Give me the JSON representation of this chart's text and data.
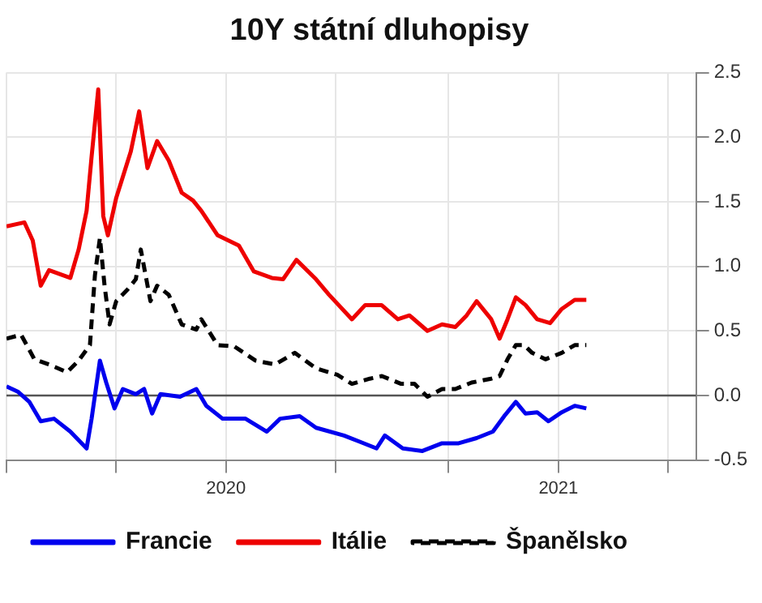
{
  "chart_data": {
    "type": "line",
    "title": "10Y státní dluhopisy",
    "xlim": [
      2019.34,
      2021.414
    ],
    "xticks": [
      {
        "value": 2019.34,
        "label": null
      },
      {
        "value": 2019.67,
        "label": null
      },
      2020,
      {
        "value": 2020.33,
        "label": null
      },
      {
        "value": 2020.67,
        "label": null
      },
      2021,
      {
        "value": 2021.33,
        "label": null
      }
    ],
    "ylim": [
      -0.5,
      2.5
    ],
    "yticks": [
      {
        "value": -0.5,
        "label": "-0.5"
      },
      {
        "value": 0,
        "label": "0.0"
      },
      {
        "value": 0.5,
        "label": "0.5"
      },
      {
        "value": 1,
        "label": "1.0"
      },
      {
        "value": 1.5,
        "label": "1.5"
      },
      {
        "value": 2,
        "label": "2.0"
      },
      {
        "value": 2.5,
        "label": "2.5"
      }
    ],
    "grid": true,
    "legend": "bottom",
    "marker": "none",
    "ref_lines": [
      {
        "axis": "y",
        "value": 0,
        "color": "#555555"
      }
    ],
    "series": [
      {
        "name": "Francie",
        "color": "#0000ee",
        "line_style": "solid",
        "x": [
          2019.34,
          2019.374,
          2019.409,
          2019.443,
          2019.483,
          2019.532,
          2019.581,
          2019.596,
          2019.621,
          2019.64,
          2019.665,
          2019.69,
          2019.729,
          2019.754,
          2019.778,
          2019.803,
          2019.862,
          2019.911,
          2019.941,
          2019.99,
          2020.059,
          2020.123,
          2020.163,
          2020.222,
          2020.271,
          2020.355,
          2020.404,
          2020.453,
          2020.478,
          2020.532,
          2020.591,
          2020.65,
          2020.7,
          2020.754,
          2020.803,
          2020.837,
          2020.872,
          2020.901,
          2020.936,
          2020.97,
          2021.01,
          2021.049,
          2021.084
        ],
        "values": [
          0.07,
          0.03,
          -0.05,
          -0.2,
          -0.18,
          -0.28,
          -0.41,
          -0.18,
          0.27,
          0.1,
          -0.1,
          0.05,
          0.01,
          0.05,
          -0.14,
          0.01,
          -0.01,
          0.05,
          -0.08,
          -0.18,
          -0.18,
          -0.28,
          -0.18,
          -0.16,
          -0.25,
          -0.31,
          -0.36,
          -0.41,
          -0.31,
          -0.41,
          -0.43,
          -0.37,
          -0.37,
          -0.33,
          -0.28,
          -0.16,
          -0.05,
          -0.14,
          -0.13,
          -0.2,
          -0.13,
          -0.08,
          -0.1
        ]
      },
      {
        "name": "Itálie",
        "color": "#ee0000",
        "line_style": "solid",
        "x": [
          2019.34,
          2019.394,
          2019.419,
          2019.443,
          2019.468,
          2019.532,
          2019.557,
          2019.581,
          2019.596,
          2019.616,
          2019.631,
          2019.645,
          2019.67,
          2019.714,
          2019.739,
          2019.764,
          2019.793,
          2019.828,
          2019.867,
          2019.901,
          2019.926,
          2019.975,
          2020.039,
          2020.084,
          2020.138,
          2020.172,
          2020.212,
          2020.271,
          2020.31,
          2020.379,
          2020.419,
          2020.468,
          2020.517,
          2020.552,
          2020.606,
          2020.65,
          2020.69,
          2020.724,
          2020.754,
          2020.798,
          2020.823,
          2020.847,
          2020.872,
          2020.901,
          2020.936,
          2020.975,
          2021.01,
          2021.049,
          2021.084
        ],
        "values": [
          1.31,
          1.34,
          1.2,
          0.85,
          0.97,
          0.91,
          1.13,
          1.43,
          1.85,
          2.37,
          1.39,
          1.24,
          1.53,
          1.89,
          2.2,
          1.76,
          1.97,
          1.82,
          1.57,
          1.51,
          1.43,
          1.24,
          1.16,
          0.96,
          0.91,
          0.9,
          1.05,
          0.9,
          0.78,
          0.59,
          0.7,
          0.7,
          0.59,
          0.62,
          0.5,
          0.55,
          0.53,
          0.62,
          0.73,
          0.59,
          0.44,
          0.59,
          0.76,
          0.7,
          0.59,
          0.56,
          0.67,
          0.74,
          0.74
        ]
      },
      {
        "name": "Španělsko",
        "color": "#000000",
        "line_style": "dashed",
        "x": [
          2019.34,
          2019.384,
          2019.424,
          2019.468,
          2019.522,
          2019.557,
          2019.591,
          2019.606,
          2019.621,
          2019.635,
          2019.65,
          2019.67,
          2019.704,
          2019.729,
          2019.744,
          2019.773,
          2019.793,
          2019.828,
          2019.867,
          2019.911,
          2019.926,
          2019.975,
          2020.025,
          2020.089,
          2020.148,
          2020.207,
          2020.271,
          2020.335,
          2020.379,
          2020.433,
          2020.469,
          2020.527,
          2020.567,
          2020.606,
          2020.65,
          2020.69,
          2020.739,
          2020.798,
          2020.823,
          2020.847,
          2020.872,
          2020.897,
          2020.921,
          2020.961,
          2021.01,
          2021.049,
          2021.084
        ],
        "values": [
          0.44,
          0.47,
          0.28,
          0.24,
          0.18,
          0.27,
          0.39,
          0.93,
          1.22,
          0.85,
          0.55,
          0.73,
          0.82,
          0.9,
          1.13,
          0.73,
          0.85,
          0.78,
          0.55,
          0.51,
          0.59,
          0.39,
          0.38,
          0.27,
          0.24,
          0.33,
          0.21,
          0.16,
          0.09,
          0.13,
          0.15,
          0.09,
          0.09,
          -0.01,
          0.05,
          0.05,
          0.1,
          0.13,
          0.15,
          0.28,
          0.39,
          0.39,
          0.33,
          0.28,
          0.33,
          0.39,
          0.39
        ]
      }
    ]
  }
}
